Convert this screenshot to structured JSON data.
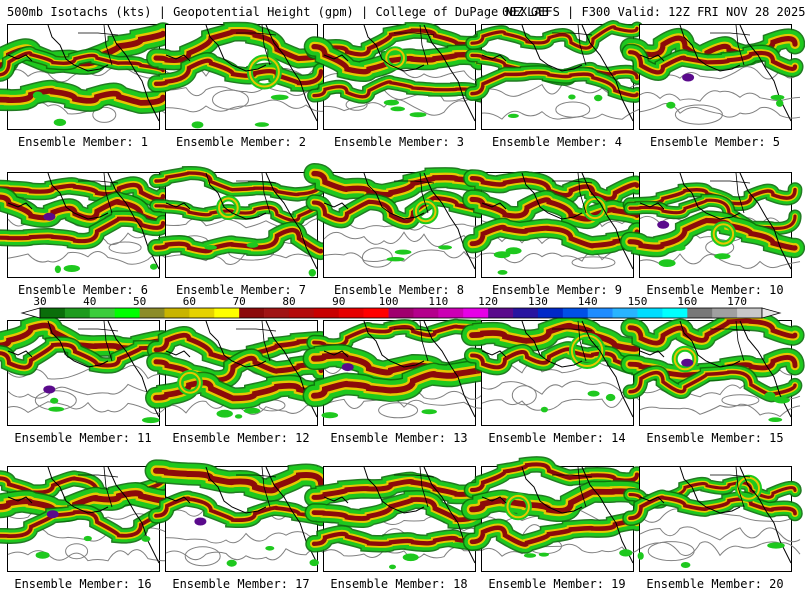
{
  "header": {
    "title": "500mb Isotachs (kts) | Geopotential Height (gpm) | College of DuPage NEXLAB",
    "run": "00Z GEFS | F300 Valid: 12Z FRI NOV 28 2025"
  },
  "panel_label_prefix": "Ensemble Member: ",
  "members": [
    {
      "label": "Ensemble Member: 1"
    },
    {
      "label": "Ensemble Member: 2"
    },
    {
      "label": "Ensemble Member: 3"
    },
    {
      "label": "Ensemble Member: 4"
    },
    {
      "label": "Ensemble Member: 5"
    },
    {
      "label": "Ensemble Member: 6"
    },
    {
      "label": "Ensemble Member: 7"
    },
    {
      "label": "Ensemble Member: 8"
    },
    {
      "label": "Ensemble Member: 9"
    },
    {
      "label": "Ensemble Member: 10"
    },
    {
      "label": "Ensemble Member: 11"
    },
    {
      "label": "Ensemble Member: 12"
    },
    {
      "label": "Ensemble Member: 13"
    },
    {
      "label": "Ensemble Member: 14"
    },
    {
      "label": "Ensemble Member: 15"
    },
    {
      "label": "Ensemble Member: 16"
    },
    {
      "label": "Ensemble Member: 17"
    },
    {
      "label": "Ensemble Member: 18"
    },
    {
      "label": "Ensemble Member: 19"
    },
    {
      "label": "Ensemble Member: 20"
    }
  ],
  "colorbar": {
    "ticks": [
      "30",
      "40",
      "50",
      "60",
      "70",
      "80",
      "90",
      "100",
      "110",
      "120",
      "130",
      "140",
      "150",
      "160",
      "170"
    ],
    "colors": [
      "#0a6e0a",
      "#1e9b1e",
      "#3ccd3c",
      "#00ff00",
      "#8c8c28",
      "#c8b400",
      "#e6d200",
      "#ffff00",
      "#8c0a0a",
      "#a01414",
      "#b40a0a",
      "#c80000",
      "#e60000",
      "#ff0000",
      "#a0006e",
      "#b4008c",
      "#cc00b4",
      "#e600e6",
      "#5a0a8c",
      "#2814a0",
      "#0028c8",
      "#0050e6",
      "#1e8cff",
      "#28b4ff",
      "#00dcff",
      "#00ffff",
      "#787878",
      "#a0a0a0",
      "#c8c8c8"
    ]
  },
  "colors": {
    "jet_low": "#1ec81e",
    "jet_edge": "#0a6e0a",
    "jet_mid": "#e6c800",
    "jet_core": "#8c0a0a",
    "jet_max": "#5a0a8c",
    "height_contour": "#808080",
    "coast": "#000000"
  }
}
